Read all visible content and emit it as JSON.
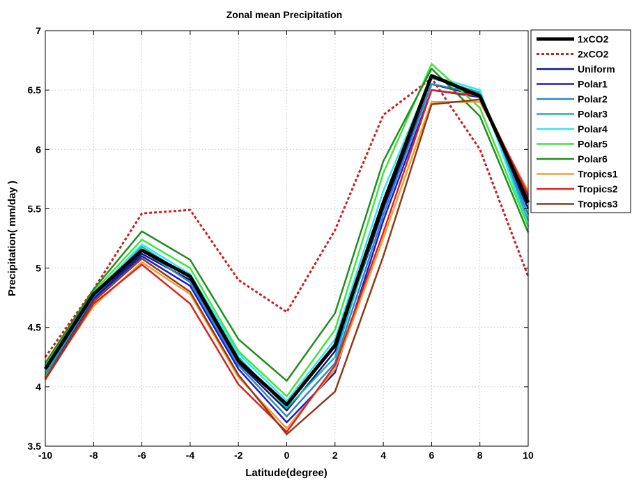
{
  "chart_data": {
    "type": "line",
    "title": "Zonal mean Precipitation",
    "xlabel": "Latitude(degree)",
    "ylabel": "Precipitation( mm/day )",
    "xlim": [
      -10,
      10
    ],
    "ylim": [
      3.5,
      7
    ],
    "xticks": [
      -10,
      -8,
      -6,
      -4,
      -2,
      0,
      2,
      4,
      6,
      8,
      10
    ],
    "yticks": [
      3.5,
      4,
      4.5,
      5,
      5.5,
      6,
      6.5,
      7
    ],
    "grid": true,
    "legend_position": "outside-right",
    "x": [
      -10,
      -8,
      -6,
      -4,
      -2,
      0,
      2,
      4,
      6,
      8,
      10
    ],
    "series": [
      {
        "name": "1xCO2",
        "color": "#000000",
        "width": 5,
        "dash": "",
        "values": [
          4.15,
          4.78,
          5.15,
          4.93,
          4.22,
          3.85,
          4.35,
          5.55,
          6.62,
          6.45,
          5.55
        ]
      },
      {
        "name": "2xCO2",
        "color": "#cc1f1f",
        "width": 3,
        "dash": "4 3",
        "values": [
          4.25,
          4.82,
          5.46,
          5.49,
          4.9,
          4.63,
          5.32,
          6.29,
          6.6,
          6.0,
          4.93
        ]
      },
      {
        "name": "Uniform",
        "color": "#0b1a7a",
        "width": 2.5,
        "dash": "",
        "values": [
          4.1,
          4.75,
          5.12,
          4.9,
          4.2,
          3.8,
          4.3,
          5.5,
          6.55,
          6.45,
          5.5
        ]
      },
      {
        "name": "Polar1",
        "color": "#1a1acc",
        "width": 2.5,
        "dash": "",
        "values": [
          4.08,
          4.74,
          5.1,
          4.85,
          4.15,
          3.7,
          4.12,
          5.4,
          6.5,
          6.44,
          5.6
        ]
      },
      {
        "name": "Polar2",
        "color": "#2e86c9",
        "width": 2.5,
        "dash": "",
        "values": [
          4.1,
          4.76,
          5.15,
          4.88,
          4.18,
          3.75,
          4.2,
          5.45,
          6.55,
          6.47,
          5.45
        ]
      },
      {
        "name": "Polar3",
        "color": "#17b3b3",
        "width": 2.5,
        "dash": "",
        "values": [
          4.12,
          4.77,
          5.18,
          4.92,
          4.25,
          3.82,
          4.25,
          5.55,
          6.6,
          6.48,
          5.4
        ]
      },
      {
        "name": "Polar4",
        "color": "#33e6f2",
        "width": 2.5,
        "dash": "",
        "values": [
          4.14,
          4.78,
          5.2,
          4.95,
          4.28,
          3.88,
          4.4,
          5.65,
          6.62,
          6.5,
          5.35
        ]
      },
      {
        "name": "Polar5",
        "color": "#3de63d",
        "width": 2.5,
        "dash": "",
        "values": [
          4.18,
          4.8,
          5.24,
          5.0,
          4.3,
          3.92,
          4.48,
          5.8,
          6.72,
          6.35,
          5.35
        ]
      },
      {
        "name": "Polar6",
        "color": "#1f8c1f",
        "width": 2.5,
        "dash": "",
        "values": [
          4.2,
          4.82,
          5.31,
          5.07,
          4.4,
          4.05,
          4.62,
          5.9,
          6.68,
          6.28,
          5.3
        ]
      },
      {
        "name": "Tropics1",
        "color": "#f0a030",
        "width": 2.5,
        "dash": "",
        "values": [
          4.08,
          4.68,
          5.05,
          4.78,
          4.08,
          3.65,
          4.15,
          5.25,
          6.4,
          6.4,
          5.65
        ]
      },
      {
        "name": "Tropics2",
        "color": "#dd2020",
        "width": 2.5,
        "dash": "",
        "values": [
          4.06,
          4.7,
          5.03,
          4.7,
          4.02,
          3.62,
          4.18,
          5.3,
          6.5,
          6.45,
          5.62
        ]
      },
      {
        "name": "Tropics3",
        "color": "#8b3a1a",
        "width": 2.5,
        "dash": "",
        "values": [
          4.07,
          4.72,
          5.08,
          4.8,
          4.1,
          3.6,
          3.96,
          5.1,
          6.38,
          6.42,
          5.58
        ]
      }
    ]
  }
}
